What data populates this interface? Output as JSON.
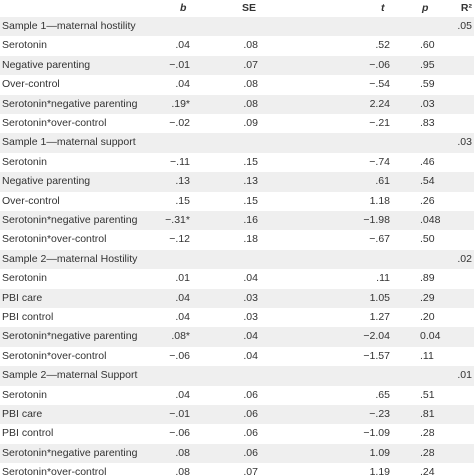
{
  "table": {
    "columns": [
      "b",
      "SE",
      "t",
      "p",
      "R²"
    ],
    "sections": [
      {
        "title": "Sample 1—maternal hostility",
        "r2": ".05",
        "rows": [
          [
            "Serotonin",
            ".04",
            ".08",
            ".52",
            ".60"
          ],
          [
            "Negative parenting",
            "−.01",
            ".07",
            "−.06",
            ".95"
          ],
          [
            "Over-control",
            ".04",
            ".08",
            "−.54",
            ".59"
          ],
          [
            "Serotonin*negative parenting",
            ".19*",
            ".08",
            "2.24",
            ".03"
          ],
          [
            "Serotonin*over-control",
            "−.02",
            ".09",
            "−.21",
            ".83"
          ]
        ]
      },
      {
        "title": "Sample 1—maternal support",
        "r2": ".03",
        "rows": [
          [
            "Serotonin",
            "−.11",
            ".15",
            "−.74",
            ".46"
          ],
          [
            "Negative parenting",
            ".13",
            ".13",
            ".61",
            ".54"
          ],
          [
            "Over-control",
            ".15",
            ".15",
            "1.18",
            ".26"
          ],
          [
            "Serotonin*negative parenting",
            "−.31*",
            ".16",
            "−1.98",
            ".048"
          ],
          [
            "Serotonin*over-control",
            "−.12",
            ".18",
            "−.67",
            ".50"
          ]
        ]
      },
      {
        "title": "Sample 2—maternal Hostility",
        "r2": ".02",
        "rows": [
          [
            "Serotonin",
            ".01",
            ".04",
            ".11",
            ".89"
          ],
          [
            "PBI care",
            ".04",
            ".03",
            "1.05",
            ".29"
          ],
          [
            "PBI control",
            ".04",
            ".03",
            "1.27",
            ".20"
          ],
          [
            "Serotonin*negative parenting",
            ".08*",
            ".04",
            "−2.04",
            "0.04"
          ],
          [
            "Serotonin*over-control",
            "−.06",
            ".04",
            "−1.57",
            ".11"
          ]
        ]
      },
      {
        "title": "Sample 2—maternal Support",
        "r2": ".01",
        "rows": [
          [
            "Serotonin",
            ".04",
            ".06",
            ".65",
            ".51"
          ],
          [
            "PBI care",
            "−.01",
            ".06",
            "−.23",
            ".81"
          ],
          [
            "PBI control",
            "−.06",
            ".06",
            "−1.09",
            ".28"
          ],
          [
            "Serotonin*negative parenting",
            ".08",
            ".06",
            "1.09",
            ".28"
          ],
          [
            "Serotonin*over-control",
            ".08",
            ".07",
            "1.19",
            ".24"
          ]
        ]
      }
    ]
  }
}
